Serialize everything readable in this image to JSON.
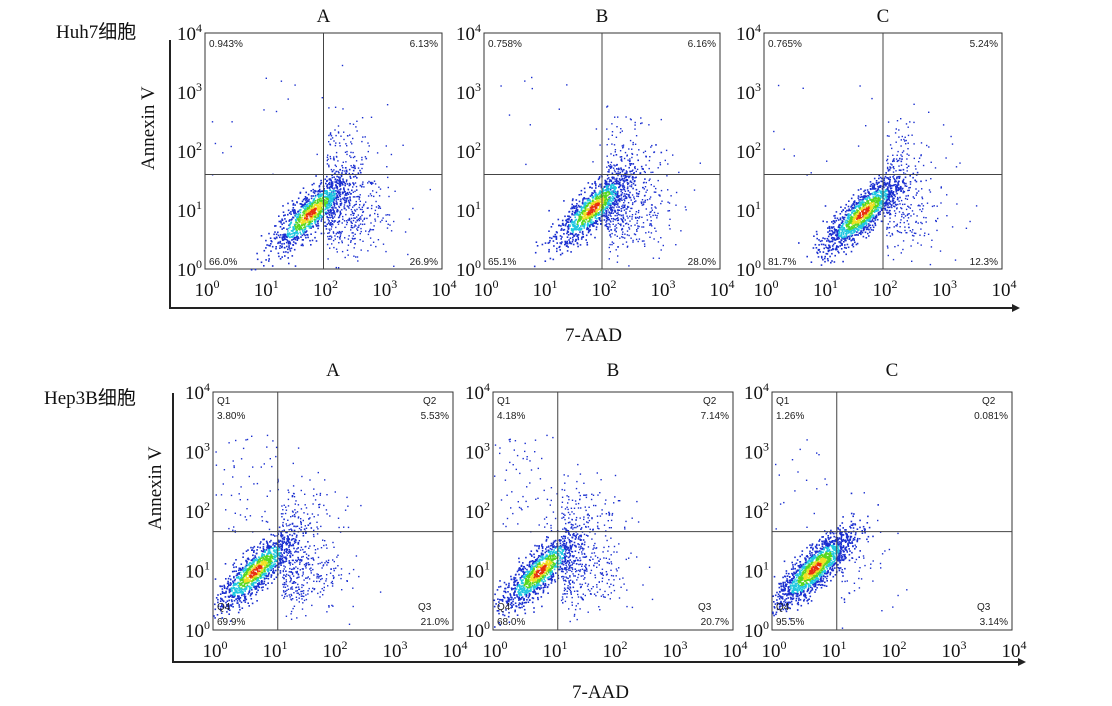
{
  "figure": {
    "x_axis_title": "7-AAD",
    "y_axis_title": "Annexin V",
    "tick_base": "10",
    "tick_exponents": [
      "0",
      "1",
      "2",
      "3",
      "4"
    ],
    "colors": {
      "low_density": "#1a2fd0",
      "mid_density": "#20c8e0",
      "high_density": "#58d820",
      "peak_density": "#f0e020",
      "core_density": "#e83010"
    }
  },
  "chart_data": [
    {
      "type": "scatter",
      "subtype": "flow-cytometry-density",
      "row_label": "Huh7细胞",
      "panel_label": "A",
      "xlabel": "7-AAD",
      "ylabel": "Annexin V",
      "xscale": "log",
      "yscale": "log",
      "xlim": [
        1,
        10000
      ],
      "ylim": [
        1,
        10000
      ],
      "gate": {
        "x": 100,
        "y": 40
      },
      "quadrants": {
        "Q1": {
          "name": "",
          "pct": "0.943%"
        },
        "Q2": {
          "name": "",
          "pct": "6.13%"
        },
        "Q3": {
          "name": "",
          "pct": "26.9%"
        },
        "Q4": {
          "name": "",
          "pct": "66.0%"
        }
      },
      "population_center": {
        "x": 60,
        "y": 9
      }
    },
    {
      "type": "scatter",
      "subtype": "flow-cytometry-density",
      "row_label": "Huh7细胞",
      "panel_label": "B",
      "xlabel": "7-AAD",
      "ylabel": "Annexin V",
      "xscale": "log",
      "yscale": "log",
      "xlim": [
        1,
        10000
      ],
      "ylim": [
        1,
        10000
      ],
      "gate": {
        "x": 100,
        "y": 40
      },
      "quadrants": {
        "Q1": {
          "name": "",
          "pct": "0.758%"
        },
        "Q2": {
          "name": "",
          "pct": "6.16%"
        },
        "Q3": {
          "name": "",
          "pct": "28.0%"
        },
        "Q4": {
          "name": "",
          "pct": "65.1%"
        }
      },
      "population_center": {
        "x": 70,
        "y": 11
      }
    },
    {
      "type": "scatter",
      "subtype": "flow-cytometry-density",
      "row_label": "Huh7细胞",
      "panel_label": "C",
      "xlabel": "7-AAD",
      "ylabel": "Annexin V",
      "xscale": "log",
      "yscale": "log",
      "xlim": [
        1,
        10000
      ],
      "ylim": [
        1,
        10000
      ],
      "gate": {
        "x": 100,
        "y": 40
      },
      "quadrants": {
        "Q1": {
          "name": "",
          "pct": "0.765%"
        },
        "Q2": {
          "name": "",
          "pct": "5.24%"
        },
        "Q3": {
          "name": "",
          "pct": "12.3%"
        },
        "Q4": {
          "name": "",
          "pct": "81.7%"
        }
      },
      "population_center": {
        "x": 45,
        "y": 9
      }
    },
    {
      "type": "scatter",
      "subtype": "flow-cytometry-density",
      "row_label": "Hep3B细胞",
      "panel_label": "A",
      "xlabel": "7-AAD",
      "ylabel": "Annexin V",
      "xscale": "log",
      "yscale": "log",
      "xlim": [
        1,
        10000
      ],
      "ylim": [
        1,
        10000
      ],
      "gate": {
        "x": 12,
        "y": 45
      },
      "quadrants": {
        "Q1": {
          "name": "Q1",
          "pct": "3.80%"
        },
        "Q2": {
          "name": "Q2",
          "pct": "5.53%"
        },
        "Q3": {
          "name": "Q3",
          "pct": "21.0%"
        },
        "Q4": {
          "name": "Q4",
          "pct": "69.9%"
        }
      },
      "population_center": {
        "x": 5,
        "y": 10
      }
    },
    {
      "type": "scatter",
      "subtype": "flow-cytometry-density",
      "row_label": "Hep3B细胞",
      "panel_label": "B",
      "xlabel": "7-AAD",
      "ylabel": "Annexin V",
      "xscale": "log",
      "yscale": "log",
      "xlim": [
        1,
        10000
      ],
      "ylim": [
        1,
        10000
      ],
      "gate": {
        "x": 12,
        "y": 45
      },
      "quadrants": {
        "Q1": {
          "name": "Q1",
          "pct": "4.18%"
        },
        "Q2": {
          "name": "Q2",
          "pct": "7.14%"
        },
        "Q3": {
          "name": "Q3",
          "pct": "20.7%"
        },
        "Q4": {
          "name": "Q4",
          "pct": "68.0%"
        }
      },
      "population_center": {
        "x": 6,
        "y": 10
      }
    },
    {
      "type": "scatter",
      "subtype": "flow-cytometry-density",
      "row_label": "Hep3B细胞",
      "panel_label": "C",
      "xlabel": "7-AAD",
      "ylabel": "Annexin V",
      "xscale": "log",
      "yscale": "log",
      "xlim": [
        1,
        10000
      ],
      "ylim": [
        1,
        10000
      ],
      "gate": {
        "x": 12,
        "y": 45
      },
      "quadrants": {
        "Q1": {
          "name": "Q1",
          "pct": "1.26%"
        },
        "Q2": {
          "name": "Q2",
          "pct": "0.081%"
        },
        "Q3": {
          "name": "Q3",
          "pct": "3.14%"
        },
        "Q4": {
          "name": "Q4",
          "pct": "95.5%"
        }
      },
      "population_center": {
        "x": 5,
        "y": 11
      }
    }
  ]
}
